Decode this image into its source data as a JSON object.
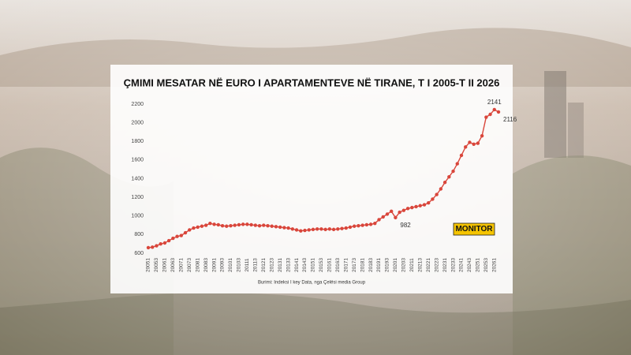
{
  "chart_data": {
    "type": "line",
    "title": "ÇMIMI MESATAR NË EURO I APARTAMENTEVE NË TIRANE, T I 2005-T II 2026",
    "source": "Burimi: Indeksi I key Data, nga Çelësi media Group",
    "logo": "MONITOR",
    "color": "#d9463b",
    "categories": [
      "20051",
      null,
      "20053",
      null,
      "20061",
      null,
      "20063",
      null,
      "20071",
      null,
      "20073",
      null,
      "20081",
      null,
      "20083",
      null,
      "20091",
      null,
      "20093",
      null,
      "20101",
      null,
      "20103",
      null,
      "20111",
      null,
      "20113",
      null,
      "20121",
      null,
      "20123",
      null,
      "20131",
      null,
      "20133",
      null,
      "20141",
      null,
      "20143",
      null,
      "20151",
      null,
      "20153",
      null,
      "20161",
      null,
      "20163",
      null,
      "20171",
      null,
      "20173",
      null,
      "20181",
      null,
      "20183",
      null,
      "20191",
      null,
      "20193",
      null,
      "20201",
      null,
      "20203",
      null,
      "20211",
      null,
      "20213",
      null,
      "20221",
      null,
      "20223",
      null,
      "20231",
      null,
      "20233",
      null,
      "20241",
      null,
      "20243",
      null,
      "20251",
      null,
      "20253",
      null,
      "20261",
      null
    ],
    "values": [
      660,
      665,
      680,
      700,
      710,
      735,
      760,
      780,
      790,
      820,
      850,
      870,
      880,
      890,
      900,
      920,
      910,
      905,
      895,
      890,
      895,
      900,
      905,
      910,
      910,
      905,
      900,
      895,
      900,
      895,
      890,
      885,
      880,
      875,
      870,
      860,
      850,
      840,
      845,
      850,
      855,
      860,
      860,
      855,
      860,
      855,
      860,
      865,
      870,
      880,
      890,
      895,
      900,
      905,
      910,
      920,
      960,
      990,
      1020,
      1050,
      982,
      1040,
      1060,
      1080,
      1090,
      1100,
      1110,
      1120,
      1140,
      1180,
      1230,
      1290,
      1360,
      1420,
      1480,
      1560,
      1650,
      1740,
      1790,
      1770,
      1780,
      1860,
      2060,
      2090,
      2141,
      2116
    ],
    "value_labels": [
      null,
      null,
      null,
      null,
      null,
      null,
      null,
      null,
      null,
      null,
      null,
      null,
      null,
      null,
      null,
      null,
      null,
      null,
      null,
      null,
      null,
      null,
      null,
      null,
      null,
      null,
      null,
      null,
      null,
      null,
      null,
      null,
      null,
      null,
      null,
      null,
      null,
      null,
      null,
      null,
      null,
      null,
      null,
      null,
      null,
      null,
      null,
      null,
      null,
      null,
      null,
      null,
      null,
      null,
      null,
      null,
      null,
      null,
      null,
      null,
      "982",
      null,
      null,
      null,
      null,
      null,
      null,
      null,
      null,
      null,
      null,
      null,
      null,
      null,
      null,
      null,
      null,
      null,
      null,
      null,
      null,
      null,
      null,
      null,
      "2141",
      "2116"
    ],
    "ylim": [
      600,
      2200
    ],
    "yticks": [
      600,
      800,
      1000,
      1200,
      1400,
      1600,
      1800,
      2000,
      2200
    ],
    "grid": false
  }
}
